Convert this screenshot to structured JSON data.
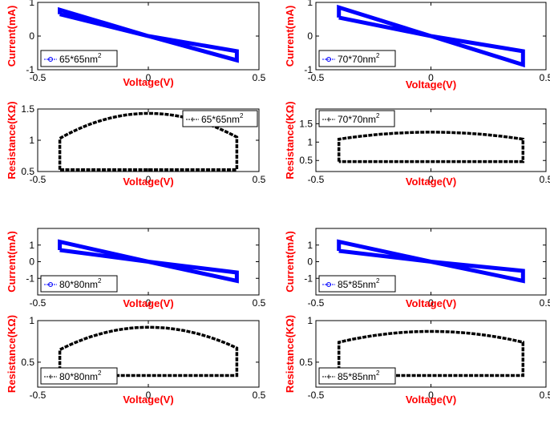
{
  "chart_data": [
    {
      "type": "line",
      "kind": "iv",
      "xlabel": "Voltage(V)",
      "ylabel": "Current(mA)",
      "xlim": [
        -0.5,
        0.5
      ],
      "ylim": [
        -1,
        1
      ],
      "xticks": [
        "-0.5",
        "0",
        "0.5"
      ],
      "yticks": [
        "-1",
        "0",
        "1"
      ],
      "legend": {
        "text": "65*65nm",
        "sup": "2",
        "placement": "bottom-left"
      },
      "series_color": "#0000ff",
      "series": [
        {
          "x": [
            -0.4,
            0.0,
            0.4,
            0.4,
            0.0,
            -0.4,
            -0.4
          ],
          "y": [
            0.65,
            0.0,
            -0.45,
            -0.72,
            0.0,
            0.78,
            0.65
          ]
        }
      ]
    },
    {
      "type": "line",
      "kind": "iv",
      "xlabel": "Voltage(V)",
      "ylabel": "Current(mA)",
      "xlim": [
        -0.5,
        0.5
      ],
      "ylim": [
        -1,
        1
      ],
      "xticks": [
        "-0.5",
        "0",
        "0.5"
      ],
      "yticks": [
        "-1",
        "0",
        "1"
      ],
      "legend": {
        "text": "70*70nm",
        "sup": "2",
        "placement": "bottom-left"
      },
      "series_color": "#0000ff",
      "series": [
        {
          "x": [
            -0.4,
            0.0,
            0.4,
            0.4,
            0.0,
            -0.4,
            -0.4
          ],
          "y": [
            0.55,
            0.0,
            -0.45,
            -0.85,
            0.0,
            0.85,
            0.55
          ]
        }
      ]
    },
    {
      "type": "line",
      "kind": "res",
      "xlabel": "Voltage(V)",
      "ylabel": "Resistance(KΩ)",
      "xlim": [
        -0.5,
        0.5
      ],
      "ylim": [
        0.5,
        1.5
      ],
      "xticks": [
        "-0.5",
        "0",
        "0.5"
      ],
      "yticks": [
        "0.5",
        "1",
        "1.5"
      ],
      "legend": {
        "text": "65*65nm",
        "sup": "2",
        "placement": "top-right"
      },
      "series_color": "#000000",
      "low": 0.53,
      "left_top": 1.03,
      "peak": 1.43,
      "right_top": 1.05
    },
    {
      "type": "line",
      "kind": "res",
      "xlabel": "Voltage(V)",
      "ylabel": "Resistance(KΩ)",
      "xlim": [
        -0.5,
        0.5
      ],
      "ylim": [
        0.2,
        1.9
      ],
      "xticks": [
        "-0.5",
        "0",
        "0.5"
      ],
      "yticks": [
        "0.5",
        "1",
        "1.5"
      ],
      "legend": {
        "text": "70*70nm",
        "sup": "2",
        "placement": "top-left"
      },
      "series_color": "#000000",
      "low": 0.47,
      "left_top": 1.08,
      "peak": 1.27,
      "right_top": 1.08
    },
    {
      "type": "line",
      "kind": "iv",
      "xlabel": "Voltage(V)",
      "ylabel": "Current(mA)",
      "xlim": [
        -0.5,
        0.5
      ],
      "ylim": [
        -2,
        2
      ],
      "xticks": [
        "-0.5",
        "0",
        "0.5"
      ],
      "yticks": [
        "-1",
        "0",
        "1"
      ],
      "legend": {
        "text": "80*80nm",
        "sup": "2",
        "placement": "bottom-left"
      },
      "series_color": "#0000ff",
      "series": [
        {
          "x": [
            -0.4,
            0.0,
            0.4,
            0.4,
            0.0,
            -0.4,
            -0.4
          ],
          "y": [
            0.7,
            0.0,
            -0.65,
            -1.15,
            0.0,
            1.2,
            0.7
          ]
        }
      ]
    },
    {
      "type": "line",
      "kind": "iv",
      "xlabel": "Voltage(V)",
      "ylabel": "Current(mA)",
      "xlim": [
        -0.5,
        0.5
      ],
      "ylim": [
        -2,
        2
      ],
      "xticks": [
        "-0.5",
        "0",
        "0.5"
      ],
      "yticks": [
        "-1",
        "0",
        "1"
      ],
      "legend": {
        "text": "85*85nm",
        "sup": "2",
        "placement": "bottom-left"
      },
      "series_color": "#0000ff",
      "series": [
        {
          "x": [
            -0.4,
            0.0,
            0.4,
            0.4,
            0.0,
            -0.4,
            -0.4
          ],
          "y": [
            0.65,
            0.0,
            -0.55,
            -1.15,
            0.0,
            1.2,
            0.65
          ]
        }
      ]
    },
    {
      "type": "line",
      "kind": "res",
      "xlabel": "Voltage(V)",
      "ylabel": "Resistance(KΩ)",
      "xlim": [
        -0.5,
        0.5
      ],
      "ylim": [
        0.2,
        1.0
      ],
      "xticks": [
        "-0.5",
        "0",
        "0.5"
      ],
      "yticks": [
        "0.5",
        "1"
      ],
      "legend": {
        "text": "80*80nm",
        "sup": "2",
        "placement": "bottom-left"
      },
      "series_color": "#000000",
      "low": 0.34,
      "left_top": 0.65,
      "peak": 0.92,
      "right_top": 0.67
    },
    {
      "type": "line",
      "kind": "res",
      "xlabel": "Voltage(V)",
      "ylabel": "Resistance(KΩ)",
      "xlim": [
        -0.5,
        0.5
      ],
      "ylim": [
        0.2,
        1.0
      ],
      "xticks": [
        "-0.5",
        "0",
        "0.5"
      ],
      "yticks": [
        "0.5",
        "1"
      ],
      "legend": {
        "text": "85*85nm",
        "sup": "2",
        "placement": "bottom-left"
      },
      "series_color": "#000000",
      "low": 0.34,
      "left_top": 0.74,
      "peak": 0.87,
      "right_top": 0.74
    }
  ]
}
